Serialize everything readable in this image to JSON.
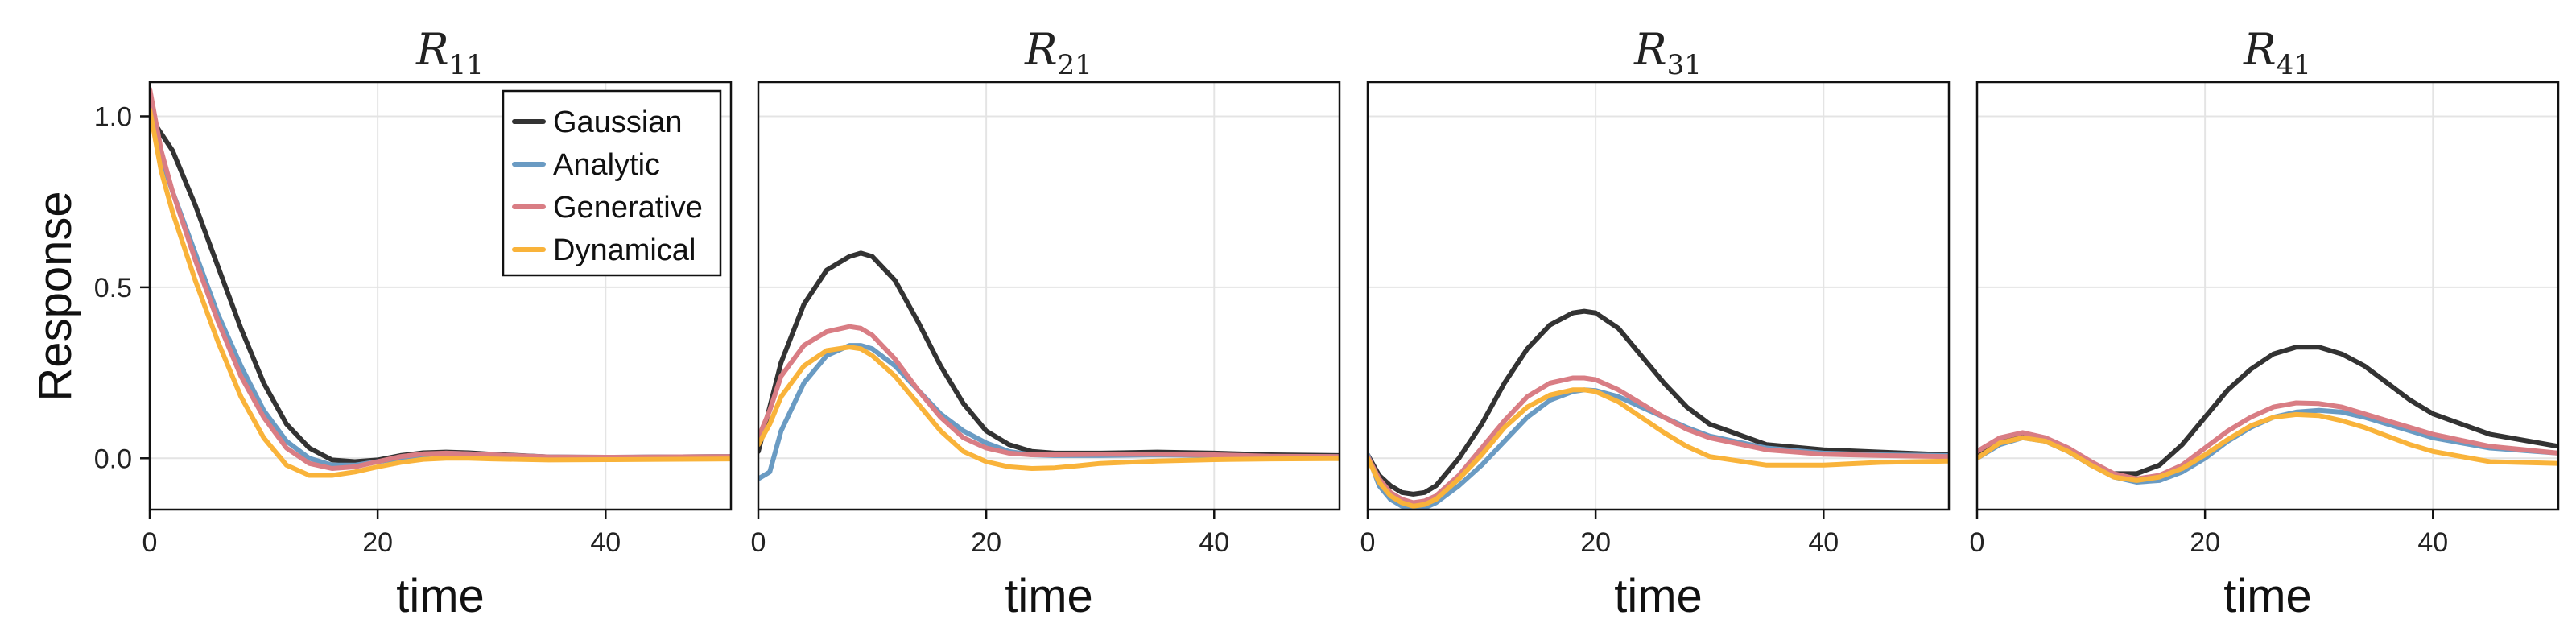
{
  "chart_data": {
    "type": "line",
    "ylabel": "Response",
    "xlabel": "time",
    "xlim": [
      0,
      51
    ],
    "ylim": [
      -0.15,
      1.1
    ],
    "xticks": [
      0,
      20,
      40
    ],
    "yticks": [
      0.0,
      0.5,
      1.0
    ],
    "xtick_labels": [
      "0",
      "20",
      "40"
    ],
    "ytick_labels": [
      "0.0",
      "0.5",
      "1.0"
    ],
    "legend": {
      "placement": "top-right of first panel",
      "entries": [
        "Gaussian",
        "Analytic",
        "Generative",
        "Dynamical"
      ]
    },
    "colors": {
      "Gaussian": "#333333",
      "Analytic": "#6a9bc3",
      "Generative": "#d97d84",
      "Dynamical": "#f9b33a"
    },
    "panels": [
      {
        "title_main": "R",
        "title_sub": "11",
        "series": [
          {
            "name": "Gaussian",
            "x": [
              0,
              2,
              4,
              6,
              8,
              10,
              12,
              14,
              16,
              18,
              20,
              22,
              24,
              26,
              28,
              30,
              35,
              40,
              45,
              51
            ],
            "values": [
              1.0,
              0.9,
              0.74,
              0.56,
              0.38,
              0.22,
              0.1,
              0.03,
              -0.005,
              -0.01,
              -0.005,
              0.008,
              0.016,
              0.018,
              0.016,
              0.012,
              0.004,
              0.002,
              0.004,
              0.005
            ]
          },
          {
            "name": "Analytic",
            "x": [
              0,
              1,
              2,
              4,
              6,
              8,
              10,
              12,
              14,
              16,
              18,
              20,
              22,
              24,
              26,
              28,
              30,
              35,
              40,
              45,
              51
            ],
            "values": [
              1.05,
              0.88,
              0.78,
              0.6,
              0.42,
              0.27,
              0.14,
              0.05,
              0.0,
              -0.02,
              -0.02,
              -0.01,
              0.0,
              0.01,
              0.015,
              0.013,
              0.01,
              0.004,
              0.003,
              0.004,
              0.005
            ]
          },
          {
            "name": "Generative",
            "x": [
              0,
              1,
              2,
              4,
              6,
              8,
              10,
              12,
              14,
              16,
              18,
              20,
              22,
              24,
              26,
              28,
              30,
              35,
              40,
              45,
              51
            ],
            "values": [
              1.08,
              0.9,
              0.78,
              0.58,
              0.4,
              0.24,
              0.12,
              0.03,
              -0.015,
              -0.03,
              -0.025,
              -0.01,
              0.005,
              0.013,
              0.015,
              0.013,
              0.01,
              0.004,
              0.003,
              0.004,
              0.005
            ]
          },
          {
            "name": "Dynamical",
            "x": [
              0,
              1,
              2,
              4,
              6,
              8,
              10,
              12,
              14,
              16,
              18,
              20,
              22,
              24,
              26,
              28,
              30,
              35,
              40,
              45,
              51
            ],
            "values": [
              1.02,
              0.84,
              0.72,
              0.52,
              0.34,
              0.18,
              0.06,
              -0.02,
              -0.05,
              -0.05,
              -0.04,
              -0.025,
              -0.012,
              -0.003,
              0.0,
              0.0,
              -0.002,
              -0.005,
              -0.004,
              -0.003,
              -0.002
            ]
          }
        ]
      },
      {
        "title_main": "R",
        "title_sub": "21",
        "series": [
          {
            "name": "Gaussian",
            "x": [
              0,
              1,
              2,
              4,
              6,
              8,
              9,
              10,
              12,
              14,
              16,
              18,
              20,
              22,
              24,
              26,
              30,
              35,
              40,
              45,
              51
            ],
            "values": [
              0.02,
              0.15,
              0.28,
              0.45,
              0.55,
              0.59,
              0.6,
              0.59,
              0.52,
              0.4,
              0.27,
              0.16,
              0.08,
              0.04,
              0.02,
              0.015,
              0.015,
              0.018,
              0.015,
              0.01,
              0.008
            ]
          },
          {
            "name": "Analytic",
            "x": [
              0,
              1,
              2,
              4,
              6,
              8,
              9,
              10,
              12,
              14,
              16,
              18,
              20,
              22,
              24,
              26,
              30,
              35,
              40,
              45,
              51
            ],
            "values": [
              -0.06,
              -0.04,
              0.08,
              0.22,
              0.3,
              0.33,
              0.33,
              0.32,
              0.27,
              0.2,
              0.13,
              0.08,
              0.045,
              0.02,
              0.01,
              0.008,
              0.008,
              0.01,
              0.008,
              0.005,
              0.005
            ]
          },
          {
            "name": "Generative",
            "x": [
              0,
              1,
              2,
              4,
              6,
              8,
              9,
              10,
              12,
              14,
              16,
              18,
              20,
              22,
              24,
              26,
              30,
              35,
              40,
              45,
              51
            ],
            "values": [
              0.06,
              0.14,
              0.24,
              0.33,
              0.37,
              0.385,
              0.38,
              0.36,
              0.29,
              0.2,
              0.12,
              0.06,
              0.03,
              0.015,
              0.01,
              0.01,
              0.012,
              0.012,
              0.01,
              0.006,
              0.005
            ]
          },
          {
            "name": "Dynamical",
            "x": [
              0,
              1,
              2,
              4,
              6,
              8,
              9,
              10,
              12,
              14,
              16,
              18,
              20,
              22,
              24,
              26,
              28,
              30,
              35,
              40,
              45,
              51
            ],
            "values": [
              0.04,
              0.1,
              0.18,
              0.27,
              0.315,
              0.325,
              0.32,
              0.3,
              0.24,
              0.16,
              0.08,
              0.02,
              -0.01,
              -0.025,
              -0.03,
              -0.028,
              -0.022,
              -0.015,
              -0.008,
              -0.004,
              -0.002,
              -0.001
            ]
          }
        ]
      },
      {
        "title_main": "R",
        "title_sub": "31",
        "series": [
          {
            "name": "Gaussian",
            "x": [
              0,
              1,
              2,
              3,
              4,
              5,
              6,
              8,
              10,
              12,
              14,
              16,
              18,
              19,
              20,
              22,
              24,
              26,
              28,
              30,
              35,
              40,
              45,
              51
            ],
            "values": [
              0.01,
              -0.05,
              -0.08,
              -0.1,
              -0.105,
              -0.1,
              -0.08,
              0.0,
              0.1,
              0.22,
              0.32,
              0.39,
              0.425,
              0.43,
              0.425,
              0.38,
              0.3,
              0.22,
              0.15,
              0.1,
              0.04,
              0.025,
              0.018,
              0.01
            ]
          },
          {
            "name": "Analytic",
            "x": [
              0,
              1,
              2,
              3,
              4,
              5,
              6,
              8,
              10,
              12,
              14,
              16,
              18,
              19,
              20,
              22,
              24,
              26,
              28,
              30,
              35,
              40,
              45,
              51
            ],
            "values": [
              0.01,
              -0.08,
              -0.12,
              -0.14,
              -0.15,
              -0.145,
              -0.13,
              -0.08,
              -0.02,
              0.05,
              0.12,
              0.17,
              0.195,
              0.2,
              0.198,
              0.18,
              0.15,
              0.12,
              0.09,
              0.065,
              0.03,
              0.015,
              0.01,
              0.008
            ]
          },
          {
            "name": "Generative",
            "x": [
              0,
              1,
              2,
              3,
              4,
              5,
              6,
              8,
              10,
              12,
              14,
              16,
              18,
              19,
              20,
              22,
              24,
              26,
              28,
              30,
              35,
              40,
              45,
              51
            ],
            "values": [
              0.005,
              -0.06,
              -0.1,
              -0.12,
              -0.13,
              -0.125,
              -0.11,
              -0.05,
              0.03,
              0.11,
              0.18,
              0.22,
              0.235,
              0.235,
              0.23,
              0.2,
              0.16,
              0.12,
              0.085,
              0.06,
              0.025,
              0.012,
              0.008,
              0.005
            ]
          },
          {
            "name": "Dynamical",
            "x": [
              0,
              1,
              2,
              3,
              4,
              5,
              6,
              8,
              10,
              12,
              14,
              16,
              18,
              19,
              20,
              22,
              24,
              26,
              28,
              30,
              35,
              40,
              45,
              51
            ],
            "values": [
              0.0,
              -0.07,
              -0.11,
              -0.13,
              -0.14,
              -0.135,
              -0.12,
              -0.06,
              0.01,
              0.09,
              0.15,
              0.185,
              0.2,
              0.2,
              0.195,
              0.165,
              0.12,
              0.075,
              0.035,
              0.005,
              -0.02,
              -0.02,
              -0.012,
              -0.008
            ]
          }
        ]
      },
      {
        "title_main": "R",
        "title_sub": "41",
        "series": [
          {
            "name": "Gaussian",
            "x": [
              0,
              2,
              4,
              6,
              8,
              10,
              12,
              14,
              16,
              18,
              20,
              22,
              24,
              26,
              28,
              30,
              32,
              34,
              36,
              38,
              40,
              45,
              51
            ],
            "values": [
              0.01,
              0.055,
              0.065,
              0.05,
              0.02,
              -0.02,
              -0.045,
              -0.045,
              -0.02,
              0.04,
              0.12,
              0.2,
              0.26,
              0.305,
              0.325,
              0.325,
              0.305,
              0.27,
              0.22,
              0.17,
              0.13,
              0.07,
              0.035
            ]
          },
          {
            "name": "Analytic",
            "x": [
              0,
              2,
              4,
              6,
              8,
              10,
              12,
              14,
              16,
              18,
              20,
              22,
              24,
              26,
              28,
              30,
              32,
              34,
              36,
              38,
              40,
              45,
              51
            ],
            "values": [
              0.0,
              0.04,
              0.06,
              0.05,
              0.02,
              -0.02,
              -0.055,
              -0.07,
              -0.065,
              -0.04,
              0.0,
              0.05,
              0.09,
              0.12,
              0.135,
              0.14,
              0.135,
              0.12,
              0.1,
              0.08,
              0.06,
              0.03,
              0.015
            ]
          },
          {
            "name": "Generative",
            "x": [
              0,
              2,
              4,
              6,
              8,
              10,
              12,
              14,
              16,
              18,
              20,
              22,
              24,
              26,
              28,
              30,
              32,
              34,
              36,
              38,
              40,
              45,
              51
            ],
            "values": [
              0.02,
              0.06,
              0.075,
              0.06,
              0.03,
              -0.01,
              -0.045,
              -0.06,
              -0.05,
              -0.02,
              0.03,
              0.08,
              0.12,
              0.15,
              0.162,
              0.16,
              0.15,
              0.13,
              0.11,
              0.09,
              0.07,
              0.035,
              0.015
            ]
          },
          {
            "name": "Dynamical",
            "x": [
              0,
              2,
              4,
              6,
              8,
              10,
              12,
              14,
              16,
              18,
              20,
              22,
              24,
              26,
              28,
              30,
              32,
              34,
              36,
              38,
              40,
              45,
              51
            ],
            "values": [
              0.0,
              0.045,
              0.06,
              0.05,
              0.02,
              -0.02,
              -0.055,
              -0.065,
              -0.055,
              -0.03,
              0.01,
              0.055,
              0.095,
              0.12,
              0.128,
              0.125,
              0.11,
              0.09,
              0.065,
              0.04,
              0.02,
              -0.01,
              -0.015
            ]
          }
        ]
      }
    ]
  }
}
